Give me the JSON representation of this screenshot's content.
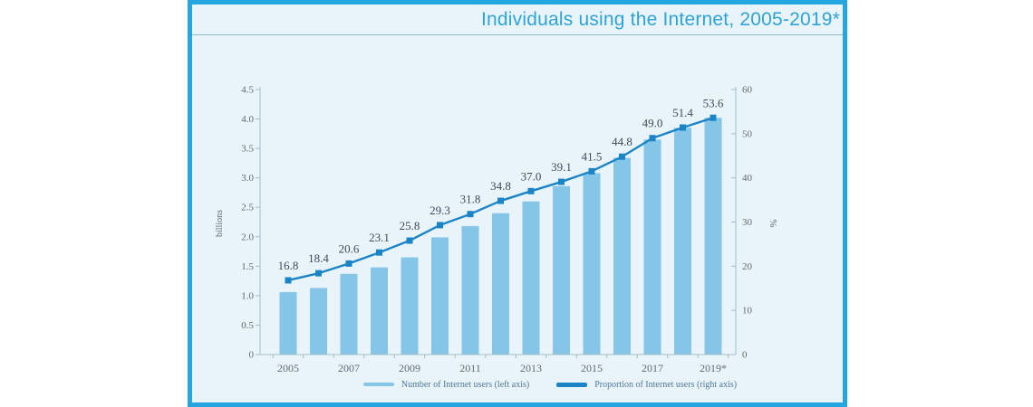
{
  "chart_data": {
    "type": "bar+line",
    "title": "Individuals using the Internet, 2005-2019*",
    "categories": [
      "2005",
      "2006",
      "2007",
      "2008",
      "2009",
      "2010",
      "2011",
      "2012",
      "2013",
      "2014",
      "2015",
      "2016",
      "2017",
      "2018",
      "2019*"
    ],
    "x_tick_labels": [
      "2005",
      "2007",
      "2009",
      "2011",
      "2013",
      "2015",
      "2017",
      "2019*"
    ],
    "series": [
      {
        "name": "Number of Internet users (left axis)",
        "type": "bar",
        "axis": "left",
        "unit": "billions",
        "values": [
          1.06,
          1.13,
          1.37,
          1.48,
          1.65,
          1.99,
          2.18,
          2.4,
          2.6,
          2.86,
          3.08,
          3.34,
          3.65,
          3.85,
          4.02
        ]
      },
      {
        "name": "Proportion of Internet users (right axis)",
        "type": "line",
        "axis": "right",
        "unit": "%",
        "values": [
          16.8,
          18.4,
          20.6,
          23.1,
          25.8,
          29.3,
          31.8,
          34.8,
          37.0,
          39.1,
          41.5,
          44.8,
          49.0,
          51.4,
          53.6
        ],
        "point_labels": [
          "16.8",
          "18.4",
          "20.6",
          "23.1",
          "25.8",
          "29.3",
          "31.8",
          "34.8",
          "37.0",
          "39.1",
          "41.5",
          "44.8",
          "49.0",
          "51.4",
          "53.6"
        ]
      }
    ],
    "left_axis": {
      "label": "billions",
      "min": 0,
      "max": 4.5,
      "step": 0.5,
      "tick_labels": [
        "0",
        "0.5",
        "1.0",
        "1.5",
        "2.0",
        "2.5",
        "3.0",
        "3.5",
        "4.0",
        "4.5"
      ]
    },
    "right_axis": {
      "label": "%",
      "min": 0,
      "max": 60,
      "step": 10,
      "tick_labels": [
        "0",
        "10",
        "20",
        "30",
        "40",
        "50",
        "60"
      ]
    },
    "legend_position": "bottom",
    "grid": false,
    "colors": {
      "bar": "#84C5E8",
      "line": "#1A84C6",
      "title": "#2EA3D6",
      "frame": "#24A6DF",
      "card_bg": "#E9F4FA",
      "axis": "#A3BBC7",
      "tick_text": "#5C6B76",
      "data_label": "#3C4A5B",
      "legend_text": "#4E7899"
    }
  }
}
